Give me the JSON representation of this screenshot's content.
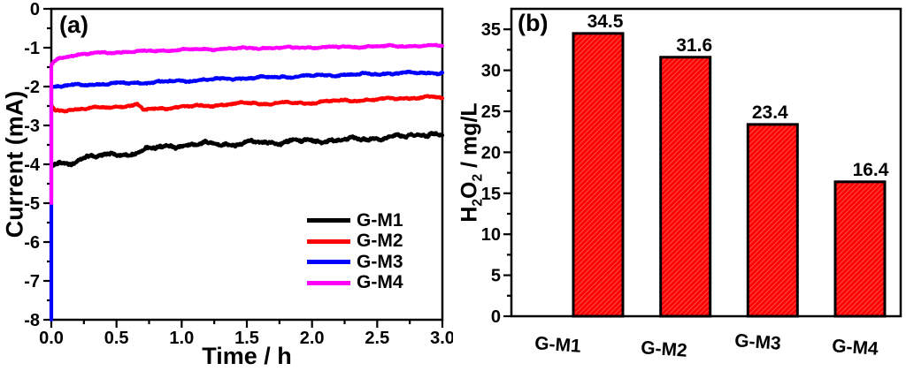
{
  "figure": {
    "background": "#ffffff",
    "text_color": "#000000"
  },
  "chart_data": [
    {
      "id": "panel-a",
      "type": "line",
      "tag": "(a)",
      "xlabel": "Time / h",
      "ylabel": "Current (mA)",
      "xlim": [
        0.0,
        3.0
      ],
      "ylim": [
        -8,
        0
      ],
      "grid": false,
      "legend_position": "inside-lower-right",
      "xticks": {
        "major": [
          0.0,
          0.5,
          1.0,
          1.5,
          2.0,
          2.5,
          3.0
        ],
        "labels": [
          "0.0",
          "0.5",
          "1.0",
          "1.5",
          "2.0",
          "2.5",
          "3.0"
        ],
        "minor_step": 0.25
      },
      "yticks": {
        "major": [
          0,
          -1,
          -2,
          -3,
          -4,
          -5,
          -6,
          -7,
          -8
        ],
        "labels": [
          "0",
          "-1",
          "-2",
          "-3",
          "-4",
          "-5",
          "-6",
          "-7",
          "-8"
        ],
        "minor_step": 0.5
      },
      "series": [
        {
          "name": "G-M1",
          "color": "#000000",
          "line_width": 4.2,
          "noise": 0.052,
          "points": [
            [
              0,
              -4.05
            ],
            [
              0.06,
              -4.0
            ],
            [
              0.12,
              -4.03
            ],
            [
              0.2,
              -3.9
            ],
            [
              0.3,
              -3.74
            ],
            [
              0.38,
              -3.82
            ],
            [
              0.46,
              -3.74
            ],
            [
              0.55,
              -3.78
            ],
            [
              0.65,
              -3.68
            ],
            [
              0.75,
              -3.6
            ],
            [
              0.85,
              -3.57
            ],
            [
              0.95,
              -3.52
            ],
            [
              1.1,
              -3.49
            ],
            [
              1.25,
              -3.47
            ],
            [
              1.4,
              -3.48
            ],
            [
              1.55,
              -3.44
            ],
            [
              1.7,
              -3.44
            ],
            [
              1.85,
              -3.4
            ],
            [
              2.0,
              -3.4
            ],
            [
              2.15,
              -3.38
            ],
            [
              2.3,
              -3.36
            ],
            [
              2.45,
              -3.33
            ],
            [
              2.6,
              -3.31
            ],
            [
              2.72,
              -3.28
            ],
            [
              2.82,
              -3.21
            ],
            [
              2.92,
              -3.22
            ],
            [
              3.0,
              -3.27
            ]
          ]
        },
        {
          "name": "G-M2",
          "color": "#ff0000",
          "line_width": 4.2,
          "noise": 0.026,
          "points": [
            [
              0,
              -2.5
            ],
            [
              0.03,
              -2.63
            ],
            [
              0.12,
              -2.6
            ],
            [
              0.3,
              -2.56
            ],
            [
              0.5,
              -2.52
            ],
            [
              0.66,
              -2.47
            ],
            [
              0.7,
              -2.6
            ],
            [
              0.85,
              -2.56
            ],
            [
              1.0,
              -2.52
            ],
            [
              1.2,
              -2.49
            ],
            [
              1.4,
              -2.45
            ],
            [
              1.56,
              -2.41
            ],
            [
              1.6,
              -2.45
            ],
            [
              1.75,
              -2.42
            ],
            [
              1.95,
              -2.43
            ],
            [
              2.1,
              -2.38
            ],
            [
              2.3,
              -2.36
            ],
            [
              2.5,
              -2.33
            ],
            [
              2.7,
              -2.3
            ],
            [
              2.9,
              -2.27
            ],
            [
              3.0,
              -2.29
            ]
          ]
        },
        {
          "name": "G-M3",
          "color": "#0000ff",
          "line_width": 4.2,
          "noise": 0.026,
          "start_spike": -8,
          "points": [
            [
              0,
              -2.02
            ],
            [
              0.15,
              -1.97
            ],
            [
              0.35,
              -1.94
            ],
            [
              0.6,
              -1.91
            ],
            [
              0.85,
              -1.88
            ],
            [
              1.1,
              -1.84
            ],
            [
              1.35,
              -1.8
            ],
            [
              1.6,
              -1.77
            ],
            [
              1.85,
              -1.74
            ],
            [
              2.1,
              -1.71
            ],
            [
              2.35,
              -1.69
            ],
            [
              2.6,
              -1.66
            ],
            [
              2.8,
              -1.65
            ],
            [
              3.0,
              -1.64
            ]
          ]
        },
        {
          "name": "G-M4",
          "color": "#ff00ff",
          "line_width": 4.2,
          "noise": 0.02,
          "start_spike": -5,
          "points": [
            [
              0,
              -1.45
            ],
            [
              0.02,
              -1.36
            ],
            [
              0.06,
              -1.28
            ],
            [
              0.12,
              -1.22
            ],
            [
              0.2,
              -1.18
            ],
            [
              0.35,
              -1.14
            ],
            [
              0.55,
              -1.11
            ],
            [
              0.8,
              -1.08
            ],
            [
              1.05,
              -1.05
            ],
            [
              1.3,
              -1.03
            ],
            [
              1.55,
              -1.01
            ],
            [
              1.8,
              -1.0
            ],
            [
              2.05,
              -0.99
            ],
            [
              2.3,
              -0.98
            ],
            [
              2.6,
              -0.96
            ],
            [
              3.0,
              -0.95
            ]
          ]
        }
      ],
      "legend": [
        "G-M1",
        "G-M2",
        "G-M3",
        "G-M4"
      ]
    },
    {
      "id": "panel-b",
      "type": "bar",
      "tag": "(b)",
      "ylabel": "H2O2 / mg/L",
      "ylabel_parts": {
        "p1": "H",
        "s1": "2",
        "p2": "O",
        "s2": "2",
        "p3": " / mg/L"
      },
      "categories": [
        "G-M1",
        "G-M2",
        "G-M3",
        "G-M4"
      ],
      "values": [
        34.5,
        31.6,
        23.4,
        16.4
      ],
      "value_labels": [
        "34.5",
        "31.6",
        "23.4",
        "16.4"
      ],
      "bar_color": "#ff0000",
      "bar_hatch_color": "#ff4d4d",
      "bar_edge_color": "#000000",
      "ylim": [
        0,
        37.5
      ],
      "grid": false,
      "yticks": {
        "major": [
          0,
          5,
          10,
          15,
          20,
          25,
          30,
          35
        ],
        "labels": [
          "0",
          "5",
          "10",
          "15",
          "20",
          "25",
          "30",
          "35"
        ],
        "minor_step": 2.5
      }
    }
  ]
}
